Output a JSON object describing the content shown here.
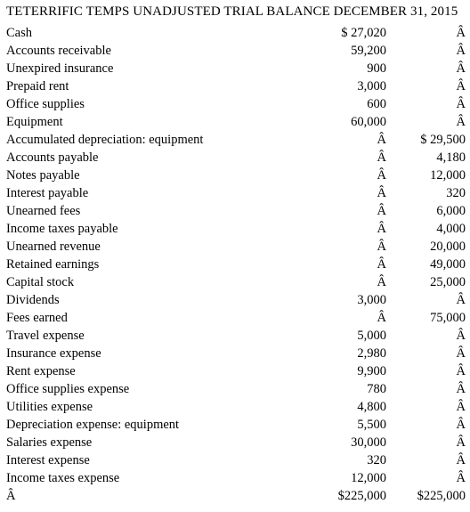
{
  "title": "TETERRIFIC TEMPS UNADJUSTED TRIAL BALANCE DECEMBER 31, 2015",
  "rows": [
    {
      "account": "Cash",
      "debit": "$ 27,020",
      "credit": "Â"
    },
    {
      "account": "Accounts receivable",
      "debit": "59,200",
      "credit": "Â"
    },
    {
      "account": "Unexpired insurance",
      "debit": "900",
      "credit": "Â"
    },
    {
      "account": "Prepaid rent",
      "debit": "3,000",
      "credit": "Â"
    },
    {
      "account": "Office supplies",
      "debit": "600",
      "credit": "Â"
    },
    {
      "account": "Equipment",
      "debit": "60,000",
      "credit": "Â"
    },
    {
      "account": "Accumulated depreciation: equipment",
      "debit": "Â",
      "credit": "$ 29,500"
    },
    {
      "account": "Accounts payable",
      "debit": "Â",
      "credit": "4,180"
    },
    {
      "account": "Notes payable",
      "debit": "Â",
      "credit": "12,000"
    },
    {
      "account": "Interest payable",
      "debit": "Â",
      "credit": "320"
    },
    {
      "account": "Unearned fees",
      "debit": "Â",
      "credit": "6,000"
    },
    {
      "account": "Income taxes payable",
      "debit": "Â",
      "credit": "4,000"
    },
    {
      "account": "Unearned revenue",
      "debit": "Â",
      "credit": "20,000"
    },
    {
      "account": "Retained earnings",
      "debit": "Â",
      "credit": "49,000"
    },
    {
      "account": "Capital stock",
      "debit": "Â",
      "credit": "25,000"
    },
    {
      "account": "Dividends",
      "debit": "3,000",
      "credit": "Â"
    },
    {
      "account": "Fees earned",
      "debit": "Â",
      "credit": "75,000"
    },
    {
      "account": "Travel expense",
      "debit": "5,000",
      "credit": "Â"
    },
    {
      "account": "Insurance expense",
      "debit": "2,980",
      "credit": "Â"
    },
    {
      "account": "Rent expense",
      "debit": "9,900",
      "credit": "Â"
    },
    {
      "account": "Office supplies expense",
      "debit": "780",
      "credit": "Â"
    },
    {
      "account": "Utilities expense",
      "debit": "4,800",
      "credit": "Â"
    },
    {
      "account": "Depreciation expense: equipment",
      "debit": "5,500",
      "credit": "Â"
    },
    {
      "account": "Salaries expense",
      "debit": "30,000",
      "credit": "Â"
    },
    {
      "account": "Interest expense",
      "debit": "320",
      "credit": "Â"
    },
    {
      "account": "Income taxes expense",
      "debit": "12,000",
      "credit": "Â"
    },
    {
      "account": "Â",
      "debit": "$225,000",
      "credit": "$225,000"
    }
  ]
}
